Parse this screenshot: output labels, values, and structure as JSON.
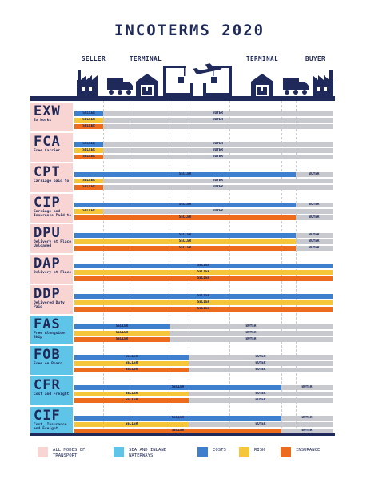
{
  "title": "INCOTERMS 2020",
  "columns": {
    "seller": "SELLER",
    "terminal_left": "TERMINAL",
    "terminal_right": "TERMINAL",
    "buyer": "BUYER"
  },
  "icons": {
    "seller_building": "factory-icon",
    "seller_truck": "truck-icon",
    "seller_warehouse": "warehouse-icon",
    "origin_port": "port-crane-icon",
    "airplane": "airplane-icon",
    "destination_port": "port-crane-icon",
    "buyer_warehouse": "warehouse-icon",
    "buyer_truck": "truck-icon",
    "buyer_building": "factory-icon"
  },
  "colors": {
    "navy": "#1f2a5a",
    "costs": "#3e7fce",
    "risk": "#f5c53a",
    "insurance": "#ec6b1c",
    "buyer": "#c7c9cf",
    "all_modes": "#f8d4d2",
    "sea_inland": "#5ec5e8"
  },
  "terms": [
    {
      "code": "EXW",
      "desc": "Ex Works",
      "mode": "all",
      "bars": [
        {
          "type": "costs",
          "split": 0,
          "seller": "SELLER",
          "buyer": "BUYER"
        },
        {
          "type": "risk",
          "split": 0,
          "seller": "SELLER",
          "buyer": "BUYER"
        },
        {
          "type": "insurance",
          "split": 0,
          "seller": "SELLER",
          "buyer": ""
        }
      ]
    },
    {
      "code": "FCA",
      "desc": "Free Carrier",
      "mode": "all",
      "bars": [
        {
          "type": "costs",
          "split": 1,
          "seller": "SELLER",
          "buyer": "BUYER"
        },
        {
          "type": "risk",
          "split": 1,
          "seller": "SELLER",
          "buyer": "BUYER"
        },
        {
          "type": "insurance",
          "split": 1,
          "seller": "SELLER",
          "buyer": "BUYER"
        }
      ]
    },
    {
      "code": "CPT",
      "desc": "Carriage paid to",
      "mode": "all",
      "bars": [
        {
          "type": "costs",
          "split": 7,
          "seller": "SELLER",
          "buyer": "BUYER"
        },
        {
          "type": "risk",
          "split": 1,
          "seller": "SELLER",
          "buyer": "BUYER"
        },
        {
          "type": "insurance",
          "split": 1,
          "seller": "SELLER",
          "buyer": "BUYER"
        }
      ]
    },
    {
      "code": "CIP",
      "desc": "Carriage and Insurance Paid to",
      "mode": "all",
      "bars": [
        {
          "type": "costs",
          "split": 7,
          "seller": "SELLER",
          "buyer": "BUYER"
        },
        {
          "type": "risk",
          "split": 1,
          "seller": "SELLER",
          "buyer": "BUYER"
        },
        {
          "type": "insurance",
          "split": 7,
          "seller": "SELLER",
          "buyer": "BUYER"
        }
      ]
    },
    {
      "code": "DPU",
      "desc": "Delivery at Place Unloaded",
      "mode": "all",
      "bars": [
        {
          "type": "costs",
          "split": 7,
          "seller": "SELLER",
          "buyer": "BUYER"
        },
        {
          "type": "risk",
          "split": 7,
          "seller": "SELLER",
          "buyer": "BUYER"
        },
        {
          "type": "insurance",
          "split": 7,
          "seller": "SELLER",
          "buyer": "BUYER"
        }
      ]
    },
    {
      "code": "DAP",
      "desc": "Delivery at Place",
      "mode": "all",
      "bars": [
        {
          "type": "costs",
          "split": 8,
          "seller": "SELLER",
          "buyer": "BUYER"
        },
        {
          "type": "risk",
          "split": 8,
          "seller": "SELLER",
          "buyer": "BUYER"
        },
        {
          "type": "insurance",
          "split": 8,
          "seller": "SELLER",
          "buyer": "BUYER"
        }
      ]
    },
    {
      "code": "DDP",
      "desc": "Delivered Duty Paid",
      "mode": "all",
      "bars": [
        {
          "type": "costs",
          "split": 8,
          "seller": "SELLER",
          "buyer": "BUYER"
        },
        {
          "type": "risk",
          "split": 8,
          "seller": "SELLER",
          "buyer": "BUYER"
        },
        {
          "type": "insurance",
          "split": 8,
          "seller": "SELLER",
          "buyer": "BUYER"
        }
      ]
    },
    {
      "code": "FAS",
      "desc": "Free Alongside Ship",
      "mode": "sea",
      "bars": [
        {
          "type": "costs",
          "split": 3,
          "seller": "SELLER",
          "buyer": "BUYER"
        },
        {
          "type": "risk",
          "split": 3,
          "seller": "SELLER",
          "buyer": "BUYER"
        },
        {
          "type": "insurance",
          "split": 3,
          "seller": "SELLER",
          "buyer": "BUYER"
        }
      ]
    },
    {
      "code": "FOB",
      "desc": "Free on Board",
      "mode": "sea",
      "bars": [
        {
          "type": "costs",
          "split": 4,
          "seller": "SELLER",
          "buyer": "BUYER"
        },
        {
          "type": "risk",
          "split": 4,
          "seller": "SELLER",
          "buyer": "BUYER"
        },
        {
          "type": "insurance",
          "split": 4,
          "seller": "SELLER",
          "buyer": "BUYER"
        }
      ]
    },
    {
      "code": "CFR",
      "desc": "Cost and Freight",
      "mode": "sea",
      "bars": [
        {
          "type": "costs",
          "split": 6,
          "seller": "SELLER",
          "buyer": "BUYER"
        },
        {
          "type": "risk",
          "split": 4,
          "seller": "SELLER",
          "buyer": "BUYER"
        },
        {
          "type": "insurance",
          "split": 4,
          "seller": "SELLER",
          "buyer": "BUYER"
        }
      ]
    },
    {
      "code": "CIF",
      "desc": "Cost, Insurance and Freight",
      "mode": "sea",
      "bars": [
        {
          "type": "costs",
          "split": 6,
          "seller": "SELLER",
          "buyer": "BUYER"
        },
        {
          "type": "risk",
          "split": 4,
          "seller": "SELLER",
          "buyer": "BUYER"
        },
        {
          "type": "insurance",
          "split": 6,
          "seller": "SELLER",
          "buyer": "BUYER"
        }
      ]
    }
  ],
  "legend": [
    {
      "label": "ALL MODES OF TRANSPORT",
      "color": "#f8d4d2",
      "icon": "all-modes-swatch"
    },
    {
      "label": "SEA AND INLAND WATERWAYS",
      "color": "#5ec5e8",
      "icon": "sea-inland-swatch"
    },
    {
      "label": "COSTS",
      "color": "#3e7fce",
      "icon": "costs-swatch"
    },
    {
      "label": "RISK",
      "color": "#f5c53a",
      "icon": "risk-swatch"
    },
    {
      "label": "INSURANCE",
      "color": "#ec6b1c",
      "icon": "insurance-swatch"
    }
  ]
}
